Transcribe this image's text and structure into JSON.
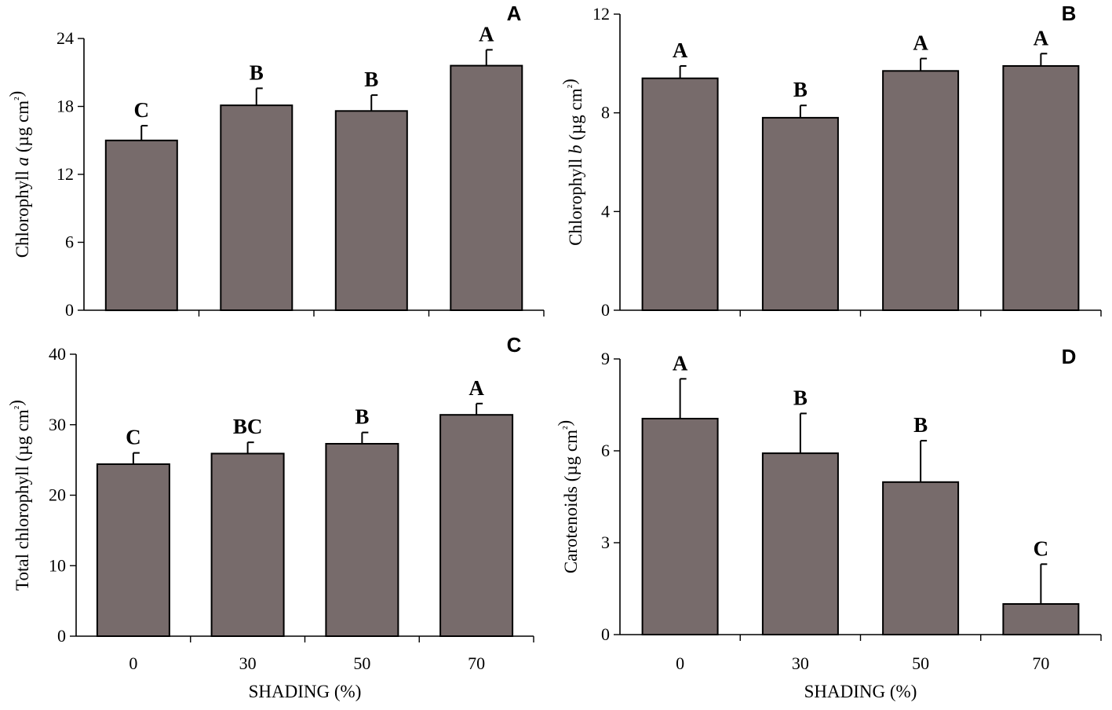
{
  "figure": {
    "x_title": "SHADING (%)"
  },
  "colors": {
    "bar_fill": "#776b6b",
    "stroke": "#000000"
  },
  "chart_data": [
    {
      "type": "bar",
      "panel": "A",
      "ylabel": "Chlorophyll a (µg cm²)",
      "ylabel_parts": [
        "Chlorophyll ",
        "a",
        " (µg cm",
        "²",
        ")"
      ],
      "xlabel": "",
      "categories": [
        "0",
        "30",
        "50",
        "70"
      ],
      "values": [
        15.0,
        18.1,
        17.6,
        21.6
      ],
      "errors": [
        1.3,
        1.5,
        1.4,
        1.4
      ],
      "letters": [
        "C",
        "B",
        "B",
        "A"
      ],
      "ylim": [
        0,
        24
      ],
      "yticks": [
        0,
        6,
        12,
        18,
        24
      ],
      "show_x_labels": false
    },
    {
      "type": "bar",
      "panel": "B",
      "ylabel": "Chlorophyll b (µg cm²)",
      "ylabel_parts": [
        "Chlorophyll ",
        "b",
        "  (µg cm",
        "²",
        ")"
      ],
      "xlabel": "",
      "categories": [
        "0",
        "30",
        "50",
        "70"
      ],
      "values": [
        9.4,
        7.8,
        9.7,
        9.9
      ],
      "errors": [
        0.5,
        0.5,
        0.5,
        0.5
      ],
      "letters": [
        "A",
        "B",
        "A",
        "A"
      ],
      "ylim": [
        0,
        12
      ],
      "yticks": [
        0,
        4,
        8,
        12
      ],
      "show_x_labels": false
    },
    {
      "type": "bar",
      "panel": "C",
      "ylabel": "Total chlorophyll (µg cm²)",
      "ylabel_parts": [
        "Total chlorophyll (µg cm",
        "²",
        ")"
      ],
      "xlabel": "SHADING (%)",
      "categories": [
        "0",
        "30",
        "50",
        "70"
      ],
      "values": [
        24.4,
        25.9,
        27.3,
        31.4
      ],
      "errors": [
        1.6,
        1.6,
        1.6,
        1.6
      ],
      "letters": [
        "C",
        "BC",
        "B",
        "A"
      ],
      "ylim": [
        0,
        40
      ],
      "yticks": [
        0,
        10,
        20,
        30,
        40
      ],
      "show_x_labels": true
    },
    {
      "type": "bar",
      "panel": "D",
      "ylabel": "Carotenoids (µg cm²)",
      "ylabel_parts": [
        "Carotenoids (µg cm",
        "²",
        ")"
      ],
      "xlabel": "SHADING (%)",
      "categories": [
        "0",
        "30",
        "50",
        "70"
      ],
      "values": [
        7.05,
        5.92,
        4.98,
        1.0
      ],
      "errors": [
        1.3,
        1.3,
        1.35,
        1.3
      ],
      "letters": [
        "A",
        "B",
        "B",
        "C"
      ],
      "ylim": [
        0,
        9
      ],
      "yticks": [
        0,
        3,
        6,
        9
      ],
      "show_x_labels": true
    }
  ]
}
